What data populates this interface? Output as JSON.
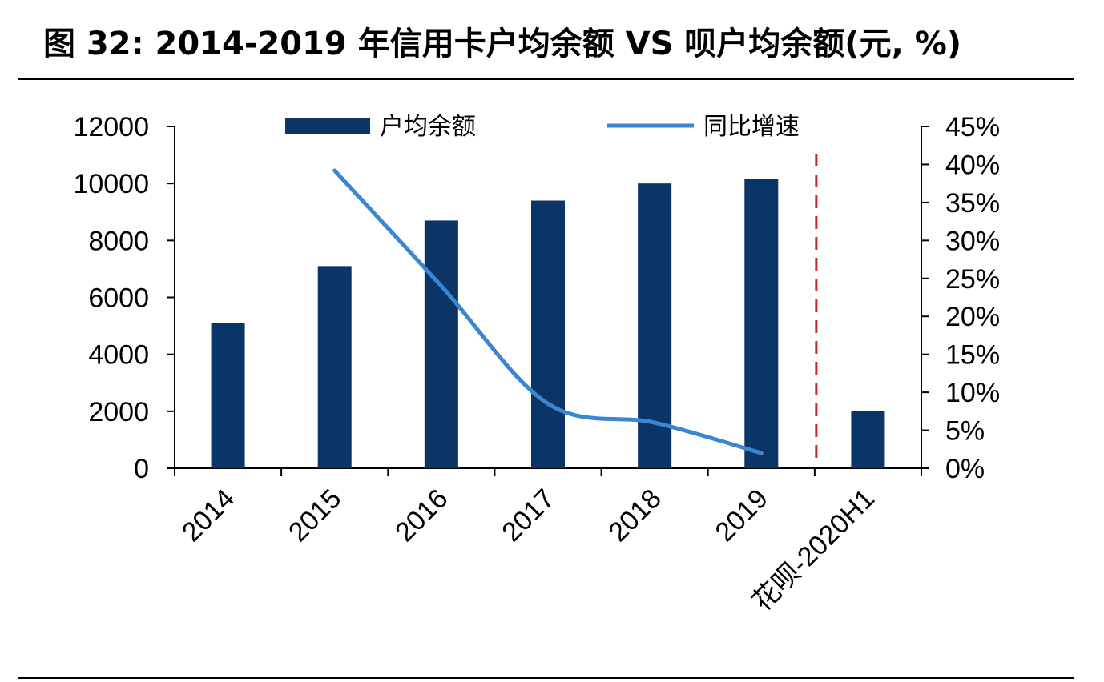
{
  "title": "图 32: 2014-2019 年信用卡户均余额 VS 呗户均余额(元, %)",
  "colors": {
    "bar": "#0b3566",
    "line": "#3b86d1",
    "divider": "#c0282b"
  },
  "chart_data": {
    "type": "bar",
    "title": "图 32: 2014-2019 年信用卡户均余额 VS 呗户均余额(元, %)",
    "categories": [
      "2014",
      "2015",
      "2016",
      "2017",
      "2018",
      "2019",
      "花呗-2020H1"
    ],
    "series": [
      {
        "name": "户均余额",
        "type": "bar",
        "axis": "left",
        "values": [
          5100,
          7100,
          8700,
          9400,
          10000,
          10150,
          2000
        ]
      },
      {
        "name": "同比增速",
        "type": "line",
        "axis": "right",
        "values": [
          null,
          39.2,
          24.0,
          8.5,
          6.0,
          2.0,
          null
        ]
      }
    ],
    "y_left": {
      "ylim": [
        0,
        12000
      ],
      "ticks": [
        0,
        2000,
        4000,
        6000,
        8000,
        10000,
        12000
      ]
    },
    "y_right": {
      "ylim": [
        0,
        45
      ],
      "ticks": [
        "0%",
        "5%",
        "10%",
        "15%",
        "20%",
        "25%",
        "30%",
        "35%",
        "40%",
        "45%"
      ]
    },
    "legend_position": "top",
    "grid": false,
    "annotations": [
      {
        "type": "vertical-dashed-line",
        "between": [
          "2019",
          "花呗-2020H1"
        ]
      }
    ]
  }
}
